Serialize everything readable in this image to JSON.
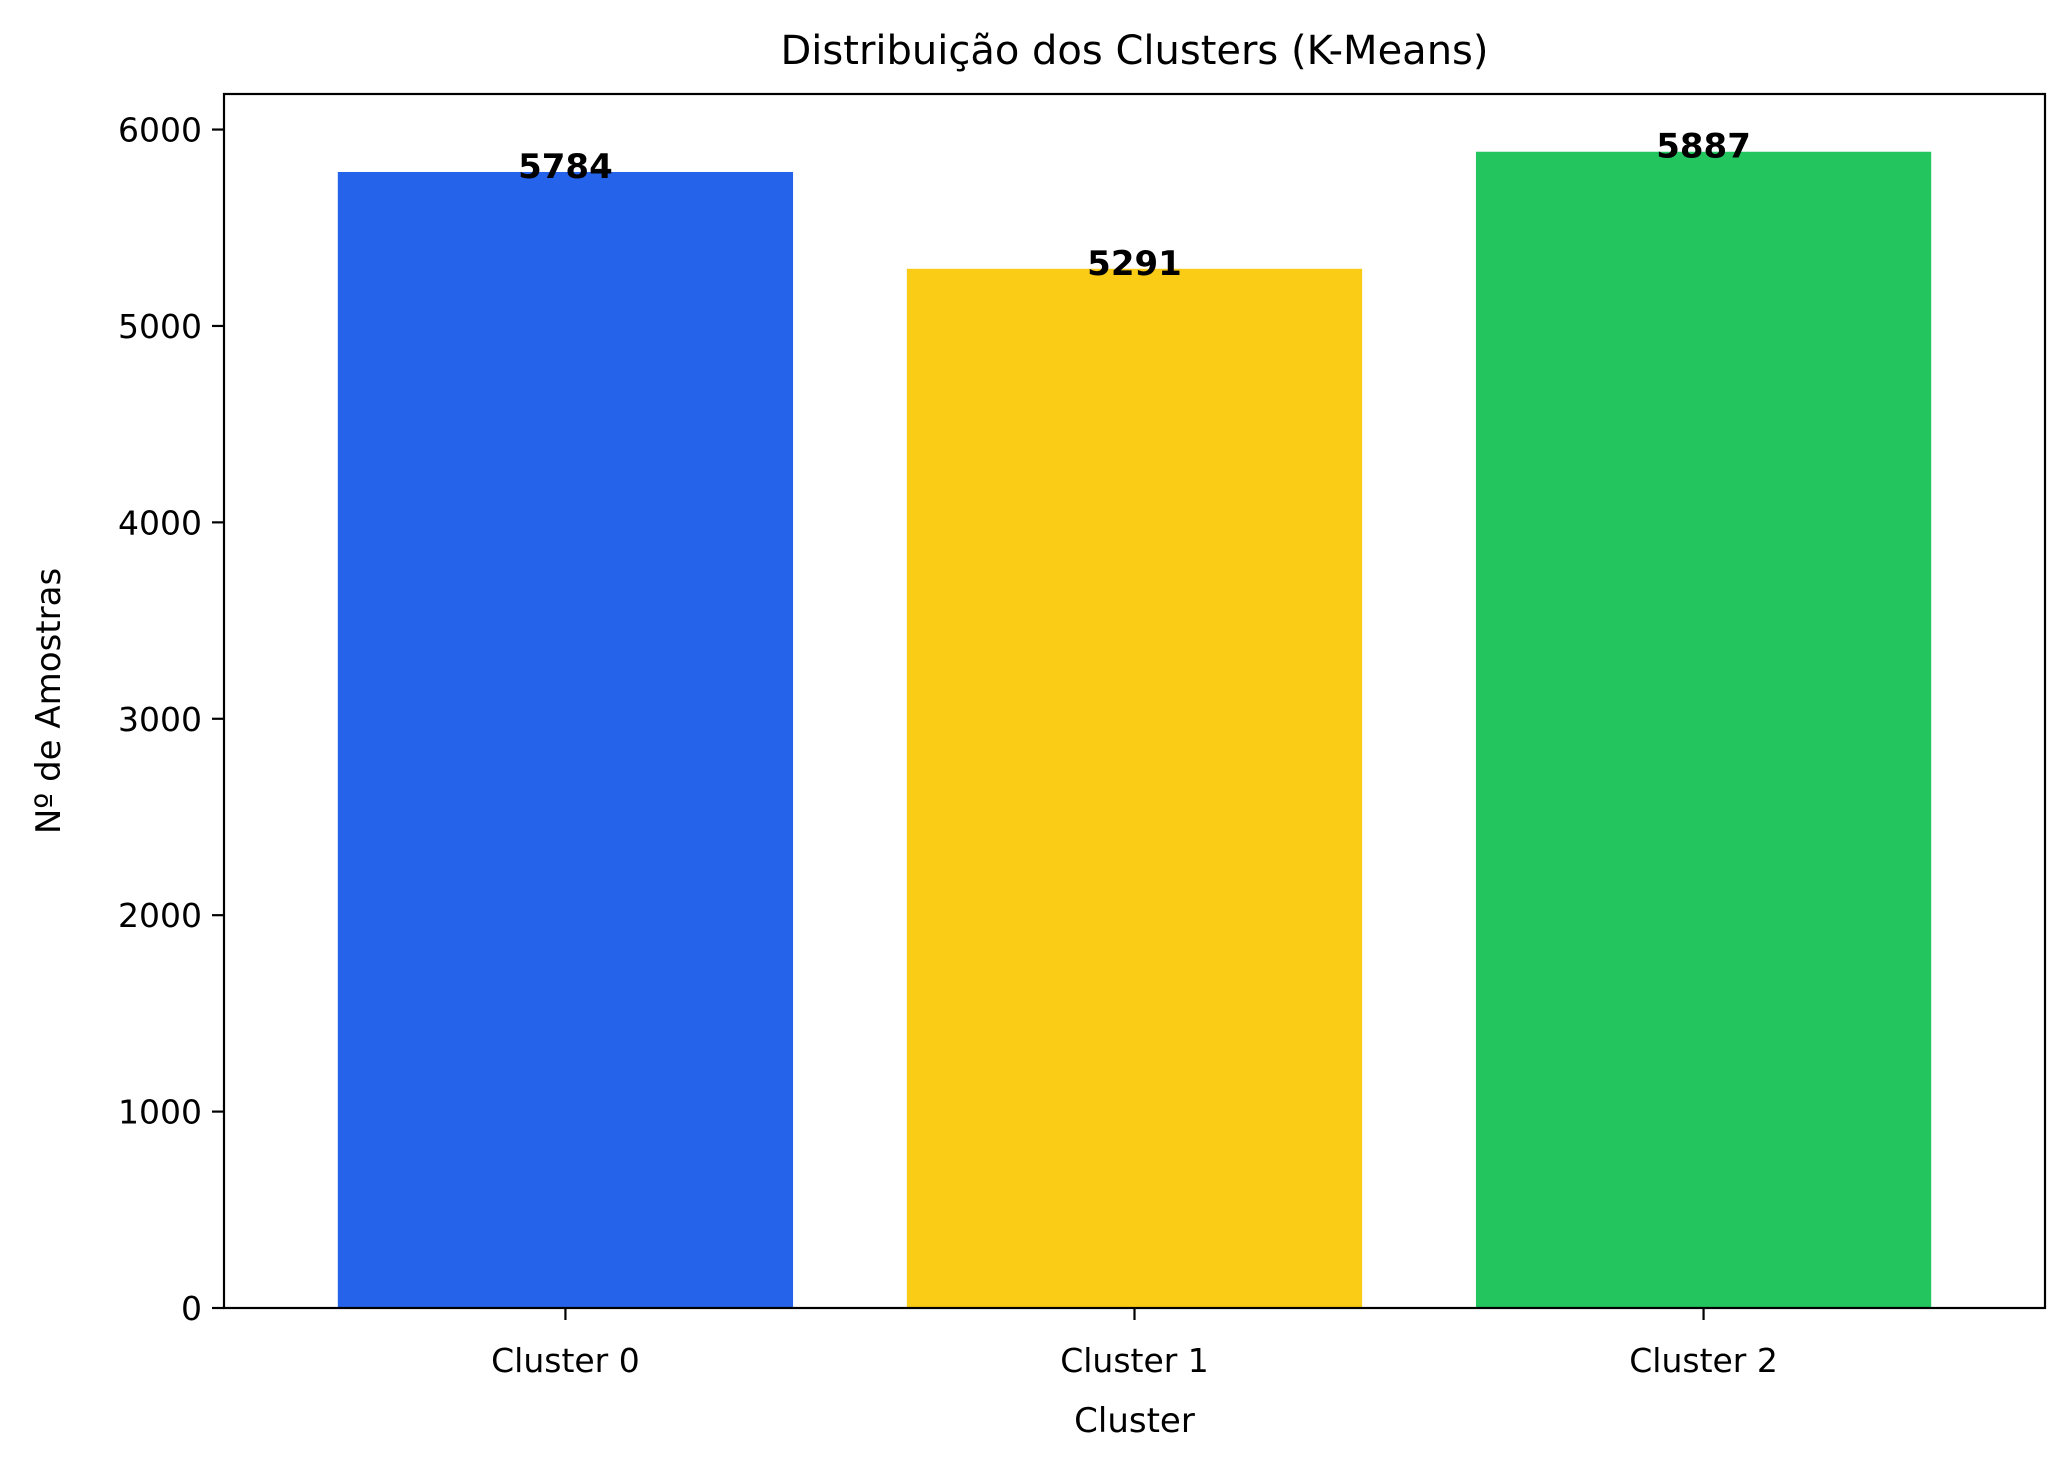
{
  "chart_data": {
    "type": "bar",
    "title": "Distribuição dos Clusters (K-Means)",
    "xlabel": "Cluster",
    "ylabel": "Nº de Amostras",
    "categories": [
      "Cluster 0",
      "Cluster 1",
      "Cluster 2"
    ],
    "values": [
      5784,
      5291,
      5887
    ],
    "value_labels": [
      "5784",
      "5291",
      "5887"
    ],
    "colors": [
      "#2563eb",
      "#facc15",
      "#22c55e"
    ],
    "ylim": [
      0,
      6181
    ],
    "yticks": [
      0,
      1000,
      2000,
      3000,
      4000,
      5000,
      6000
    ],
    "ytick_labels": [
      "0",
      "1000",
      "2000",
      "3000",
      "4000",
      "5000",
      "6000"
    ],
    "grid": false,
    "legend": "none"
  }
}
